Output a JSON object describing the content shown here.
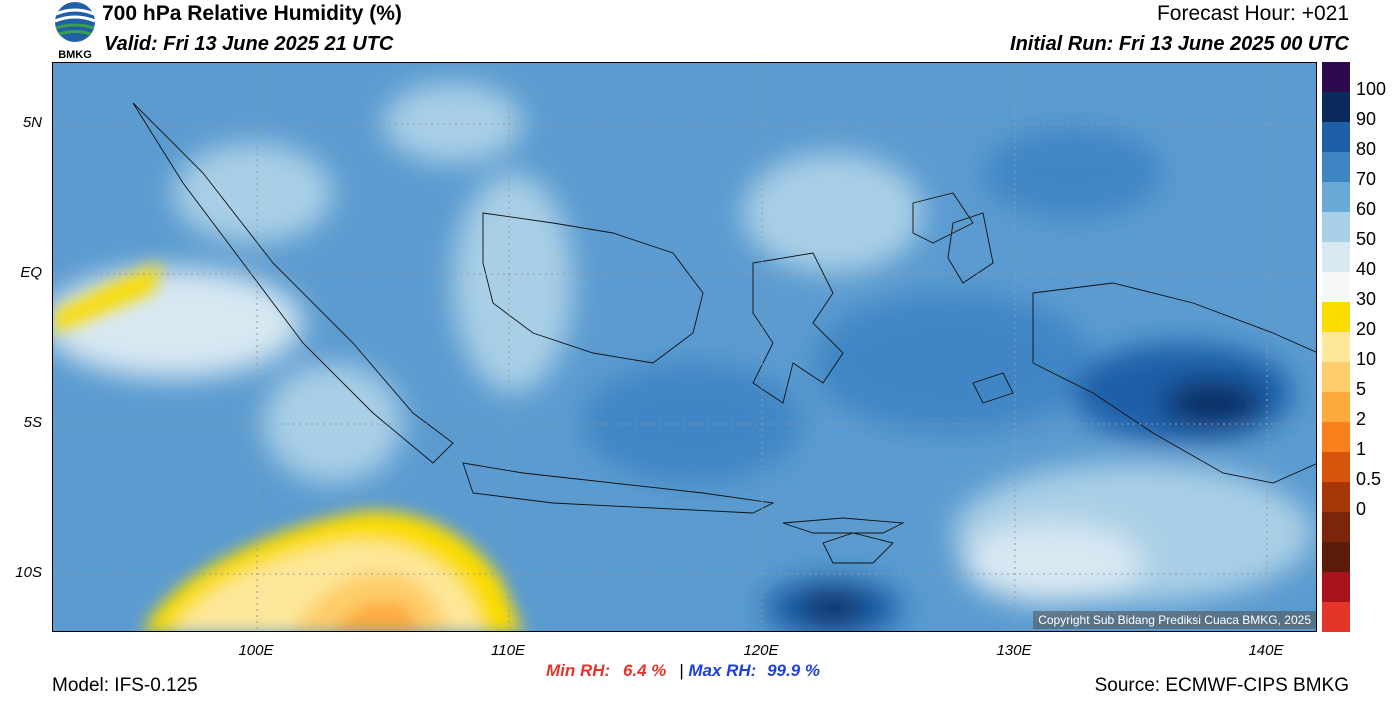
{
  "header": {
    "title": "700 hPa Relative Humidity (%)",
    "valid": "Valid: Fri 13 June 2025 21 UTC",
    "forecast_hour": "Forecast Hour: +021",
    "initial_run": "Initial Run: Fri 13 June 2025 00 UTC",
    "logo_text": "BMKG"
  },
  "axes": {
    "lat_labels": [
      "5N",
      "EQ",
      "5S",
      "10S"
    ],
    "lon_labels": [
      "100E",
      "110E",
      "120E",
      "130E",
      "140E"
    ]
  },
  "colorbar": {
    "labels": [
      "100",
      "90",
      "80",
      "70",
      "60",
      "50",
      "40",
      "30",
      "20",
      "10",
      "5",
      "2",
      "1",
      "0.5",
      "0"
    ],
    "colors": [
      "#2d0a4e",
      "#0b2a5e",
      "#1f5fa8",
      "#3f86c5",
      "#6aaad6",
      "#a9cfe6",
      "#d8e8f2",
      "#f5f7f8",
      "#fbdc00",
      "#fde79a",
      "#fecd6b",
      "#fdaa3c",
      "#f8811e",
      "#d8540b",
      "#a63605",
      "#7d2508",
      "#5c1a0a",
      "#a8141c",
      "#e3352a"
    ]
  },
  "stats": {
    "min_label": "Min RH:",
    "min_value": "6.4 %",
    "separator": "|",
    "max_label": "Max RH:",
    "max_value": "99.9 %"
  },
  "footer": {
    "model": "Model: IFS-0.125",
    "source": "Source: ECMWF-CIPS BMKG",
    "copyright": "Copyright Sub Bidang Prediksi Cuaca BMKG, 2025"
  }
}
